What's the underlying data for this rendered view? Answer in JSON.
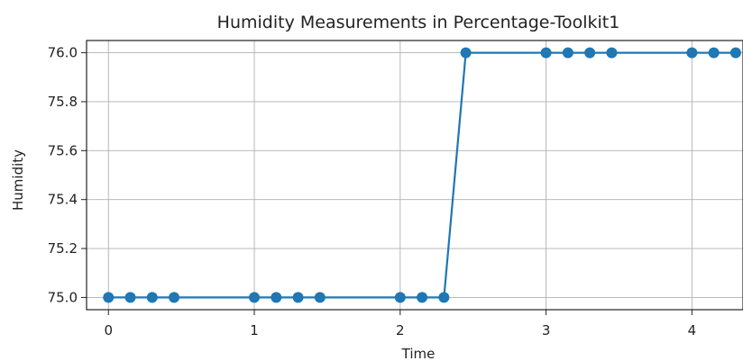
{
  "chart_data": {
    "type": "line",
    "title": "Humidity Measurements in Percentage-Toolkit1",
    "xlabel": "Time",
    "ylabel": "Humidity",
    "xlim": [
      -0.15,
      4.35
    ],
    "ylim": [
      74.95,
      76.05
    ],
    "xticks": [
      0,
      1,
      2,
      3,
      4
    ],
    "yticks": [
      75.0,
      75.2,
      75.4,
      75.6,
      75.8,
      76.0
    ],
    "ytick_labels": [
      "75.0",
      "75.2",
      "75.4",
      "75.6",
      "75.8",
      "76.0"
    ],
    "grid": true,
    "color": "#1f77b4",
    "series": [
      {
        "x": [
          0,
          0.15,
          0.3,
          0.45,
          1.0,
          1.15,
          1.3,
          1.45,
          2.0,
          2.15,
          2.3,
          2.45,
          3.0,
          3.15,
          3.3,
          3.45,
          4.0,
          4.15,
          4.3
        ],
        "y": [
          75.0,
          75.0,
          75.0,
          75.0,
          75.0,
          75.0,
          75.0,
          75.0,
          75.0,
          75.0,
          75.0,
          76.0,
          76.0,
          76.0,
          76.0,
          76.0,
          76.0,
          76.0,
          76.0
        ]
      }
    ]
  }
}
